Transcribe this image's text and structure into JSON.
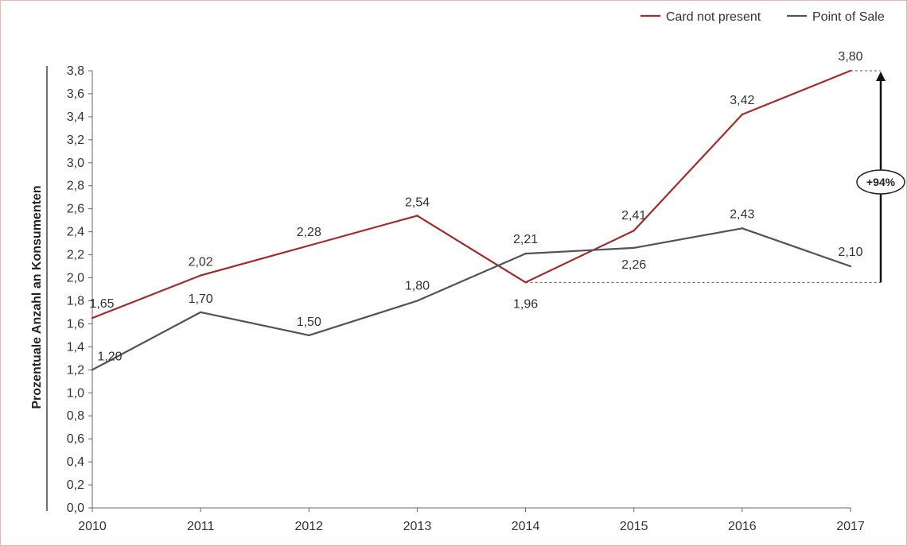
{
  "chart_data": {
    "type": "line",
    "title": "",
    "xlabel": "",
    "ylabel": "Prozentuale Anzahl an Konsumenten",
    "x": [
      "2010",
      "2011",
      "2012",
      "2013",
      "2014",
      "2015",
      "2016",
      "2017"
    ],
    "ylim": [
      0,
      3.8
    ],
    "yticks": [
      "0,0",
      "0,2",
      "0,4",
      "0,6",
      "0,8",
      "1,0",
      "1,2",
      "1,4",
      "1,6",
      "1,8",
      "2,0",
      "2,2",
      "2,4",
      "2,6",
      "2,8",
      "3,0",
      "3,2",
      "3,4",
      "3,6",
      "3,8"
    ],
    "grid": false,
    "legend_position": "top-right",
    "series": [
      {
        "name": "Card not present",
        "color": "#a52a2a",
        "values": [
          1.65,
          2.02,
          2.28,
          2.54,
          1.96,
          2.41,
          3.42,
          3.8
        ],
        "labels": [
          "1,65",
          "2,02",
          "2,28",
          "2,54",
          "1,96",
          "2,41",
          "3,42",
          "3,80"
        ]
      },
      {
        "name": "Point of Sale",
        "color": "#4a5560",
        "values": [
          1.2,
          1.7,
          1.5,
          1.8,
          2.21,
          2.26,
          2.43,
          2.1
        ],
        "labels": [
          "1,20",
          "1,70",
          "1,50",
          "1,80",
          "2,21",
          "2,26",
          "2,43",
          "2,10"
        ]
      }
    ],
    "annotation": {
      "text": "+94%",
      "from_value": 1.96,
      "to_value": 3.8
    }
  }
}
